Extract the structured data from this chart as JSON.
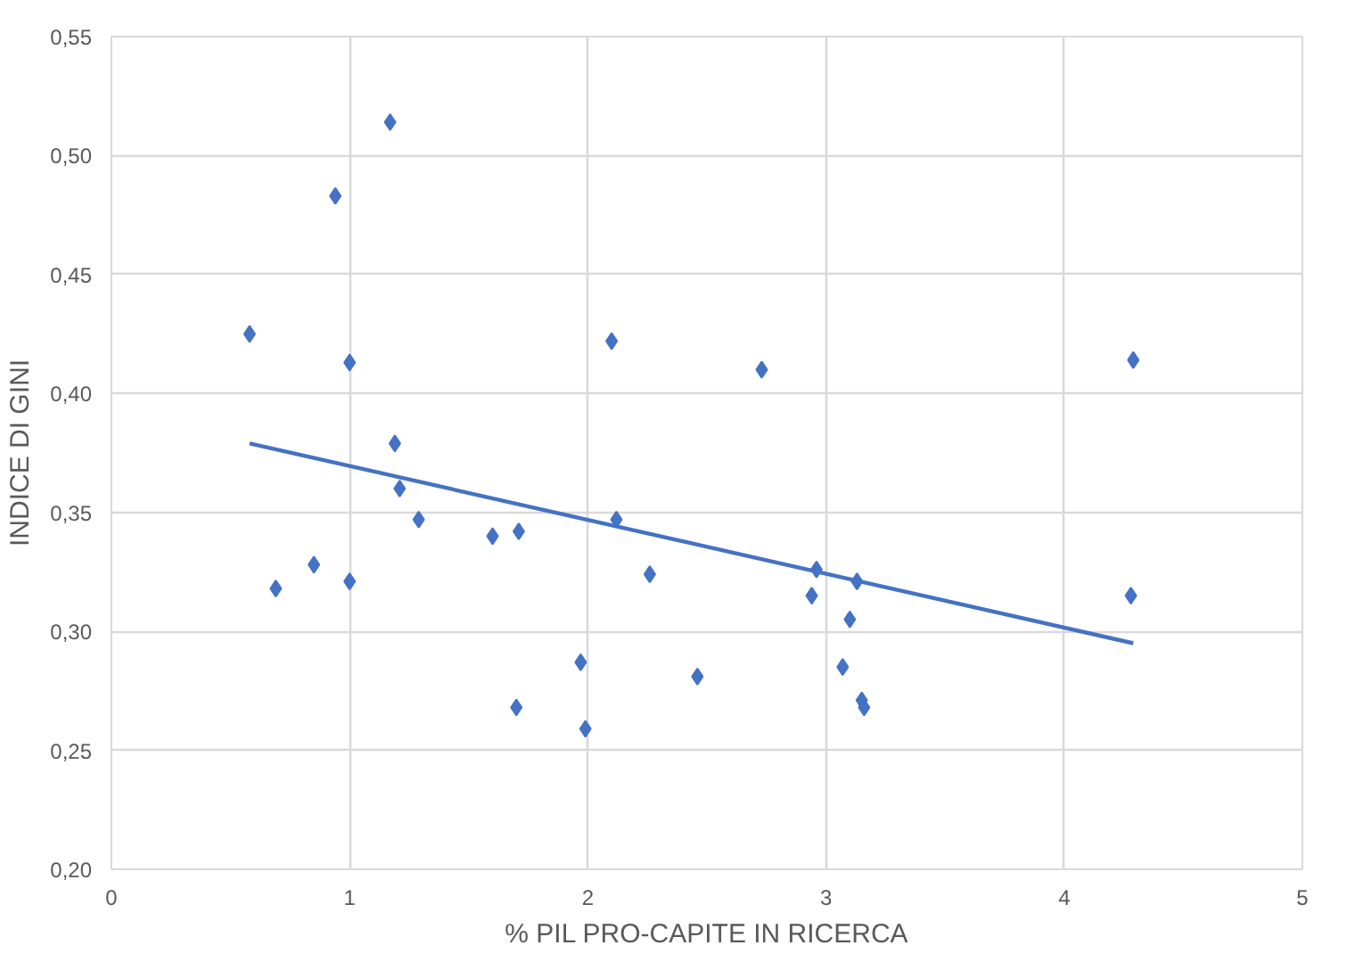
{
  "chart_data": {
    "type": "scatter",
    "xlabel": "% PIL PRO-CAPITE IN RICERCA",
    "ylabel": "INDICE DI GINI",
    "xlim": [
      0,
      5
    ],
    "xticks": [
      0,
      1,
      2,
      3,
      4,
      5
    ],
    "ylim": [
      0.2,
      0.55
    ],
    "yticks": [
      {
        "value": 0.2,
        "label": "0,20"
      },
      {
        "value": 0.25,
        "label": "0,25"
      },
      {
        "value": 0.3,
        "label": "0,30"
      },
      {
        "value": 0.35,
        "label": "0,35"
      },
      {
        "value": 0.4,
        "label": "0,40"
      },
      {
        "value": 0.45,
        "label": "0,45"
      },
      {
        "value": 0.5,
        "label": "0,50"
      },
      {
        "value": 0.55,
        "label": "0,55"
      }
    ],
    "grid": true,
    "marker": "diamond",
    "series": [
      {
        "color": "#4472c4",
        "x": [
          0.58,
          0.69,
          0.85,
          0.94,
          1.0,
          1.0,
          1.17,
          1.19,
          1.21,
          1.29,
          1.6,
          1.71,
          1.7,
          1.97,
          1.99,
          2.1,
          2.12,
          2.26,
          2.46,
          2.73,
          2.94,
          2.96,
          3.07,
          3.1,
          3.13,
          3.15,
          3.16,
          4.29,
          4.28
        ],
        "values": [
          0.425,
          0.318,
          0.328,
          0.483,
          0.413,
          0.321,
          0.514,
          0.379,
          0.36,
          0.347,
          0.34,
          0.342,
          0.268,
          0.287,
          0.259,
          0.422,
          0.347,
          0.324,
          0.281,
          0.41,
          0.315,
          0.326,
          0.285,
          0.305,
          0.321,
          0.271,
          0.268,
          0.414,
          0.315
        ]
      },
      {
        "type": "line",
        "marker": "none",
        "color": "#4472c4",
        "x": [
          0.58,
          4.29
        ],
        "values": [
          0.379,
          0.295
        ]
      }
    ]
  }
}
